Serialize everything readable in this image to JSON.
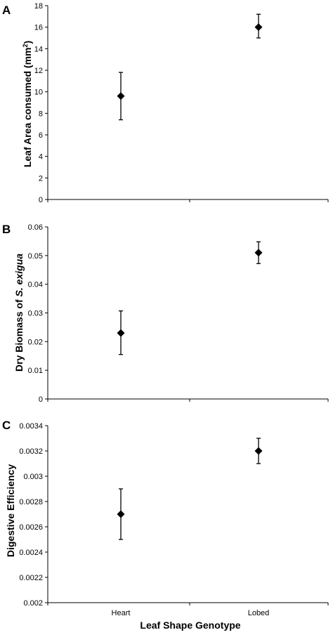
{
  "chart_data": [
    {
      "type": "scatter",
      "panel": "A",
      "ylabel": "Leaf Area consumed (mm²)",
      "ylabel_main": "Leaf Area consumed (mm",
      "ylabel_sup": "2",
      "ylabel_end": ")",
      "categories": [
        "Heart",
        "Lobed"
      ],
      "series": [
        {
          "values": [
            9.6,
            16.0
          ],
          "error_low": [
            7.4,
            15.0
          ],
          "error_high": [
            11.8,
            17.2
          ]
        }
      ],
      "ylim": [
        0,
        18
      ],
      "yticks": [
        "0",
        "2",
        "4",
        "6",
        "8",
        "10",
        "12",
        "14",
        "16",
        "18"
      ],
      "grid": false
    },
    {
      "type": "scatter",
      "panel": "B",
      "ylabel": "Dry Biomass of S. exigua",
      "ylabel_main": "Dry Biomass of ",
      "ylabel_italic": "S. exigua",
      "categories": [
        "Heart",
        "Lobed"
      ],
      "series": [
        {
          "values": [
            0.023,
            0.051
          ],
          "error_low": [
            0.0155,
            0.0472
          ],
          "error_high": [
            0.0307,
            0.0548
          ]
        }
      ],
      "ylim": [
        0,
        0.06
      ],
      "yticks": [
        "0",
        "0.01",
        "0.02",
        "0.03",
        "0.04",
        "0.05",
        "0.06"
      ],
      "grid": false
    },
    {
      "type": "scatter",
      "panel": "C",
      "ylabel": "Digestive Efficiency",
      "xlabel": "Leaf Shape Genotype",
      "categories": [
        "Heart",
        "Lobed"
      ],
      "series": [
        {
          "values": [
            0.0027,
            0.0032
          ],
          "error_low": [
            0.0025,
            0.0031
          ],
          "error_high": [
            0.0029,
            0.0033
          ]
        }
      ],
      "ylim": [
        0.002,
        0.0034
      ],
      "yticks": [
        "0.002",
        "0.0022",
        "0.0024",
        "0.0026",
        "0.0028",
        "0.003",
        "0.0032",
        "0.0034"
      ],
      "grid": false
    }
  ],
  "colors": {
    "marker": "#000000",
    "axis": "#000000"
  }
}
